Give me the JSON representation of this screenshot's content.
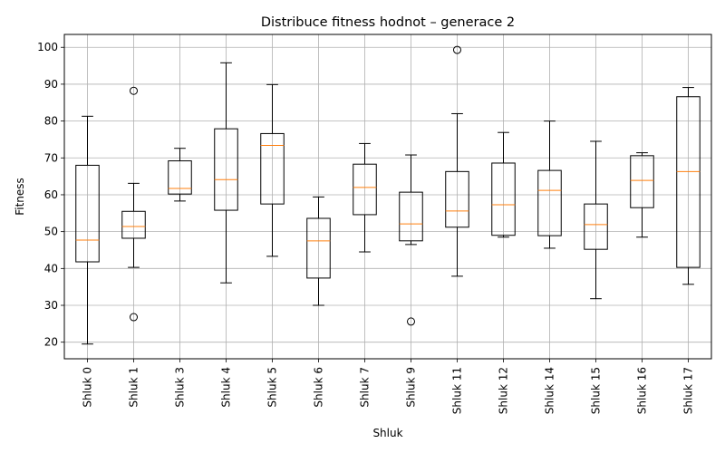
{
  "chart_data": {
    "type": "box",
    "title": "Distribuce fitness hodnot – generace 2",
    "xlabel": "Shluk",
    "ylabel": "Fitness",
    "ylim": [
      15.5,
      103.5
    ],
    "yticks": [
      20,
      30,
      40,
      50,
      60,
      70,
      80,
      90,
      100
    ],
    "grid": true,
    "colors": {
      "box": "#000000",
      "median": "#ff7f0e",
      "grid": "#b0b0b0"
    },
    "categories": [
      "Shluk 0",
      "Shluk 1",
      "Shluk 3",
      "Shluk 4",
      "Shluk 5",
      "Shluk 6",
      "Shluk 7",
      "Shluk 9",
      "Shluk 11",
      "Shluk 12",
      "Shluk 14",
      "Shluk 15",
      "Shluk 16",
      "Shluk 17"
    ],
    "boxes": [
      {
        "whisker_low": 19.5,
        "q1": 41.8,
        "median": 47.7,
        "q3": 68.0,
        "whisker_high": 81.3,
        "outliers": []
      },
      {
        "whisker_low": 40.3,
        "q1": 48.2,
        "median": 51.4,
        "q3": 55.5,
        "whisker_high": 63.1,
        "outliers": [
          88.2,
          26.8
        ]
      },
      {
        "whisker_low": 58.3,
        "q1": 60.2,
        "median": 61.7,
        "q3": 69.2,
        "whisker_high": 72.6,
        "outliers": []
      },
      {
        "whisker_low": 36.1,
        "q1": 55.8,
        "median": 64.1,
        "q3": 77.9,
        "whisker_high": 95.8,
        "outliers": []
      },
      {
        "whisker_low": 43.3,
        "q1": 57.5,
        "median": 73.4,
        "q3": 76.6,
        "whisker_high": 89.9,
        "outliers": []
      },
      {
        "whisker_low": 30.0,
        "q1": 37.4,
        "median": 47.5,
        "q3": 53.6,
        "whisker_high": 59.4,
        "outliers": []
      },
      {
        "whisker_low": 44.5,
        "q1": 54.6,
        "median": 62.0,
        "q3": 68.3,
        "whisker_high": 73.9,
        "outliers": []
      },
      {
        "whisker_low": 46.5,
        "q1": 47.5,
        "median": 52.1,
        "q3": 60.7,
        "whisker_high": 70.8,
        "outliers": [
          25.6
        ]
      },
      {
        "whisker_low": 37.9,
        "q1": 51.2,
        "median": 55.6,
        "q3": 66.3,
        "whisker_high": 82.0,
        "outliers": [
          99.3
        ]
      },
      {
        "whisker_low": 48.5,
        "q1": 49.0,
        "median": 57.3,
        "q3": 68.6,
        "whisker_high": 76.9,
        "outliers": []
      },
      {
        "whisker_low": 45.5,
        "q1": 48.9,
        "median": 61.2,
        "q3": 66.6,
        "whisker_high": 80.0,
        "outliers": []
      },
      {
        "whisker_low": 31.8,
        "q1": 45.2,
        "median": 51.9,
        "q3": 57.5,
        "whisker_high": 74.5,
        "outliers": []
      },
      {
        "whisker_low": 48.5,
        "q1": 56.5,
        "median": 63.9,
        "q3": 70.6,
        "whisker_high": 71.4,
        "outliers": []
      },
      {
        "whisker_low": 35.7,
        "q1": 40.3,
        "median": 66.3,
        "q3": 86.6,
        "whisker_high": 89.1,
        "outliers": []
      }
    ]
  }
}
